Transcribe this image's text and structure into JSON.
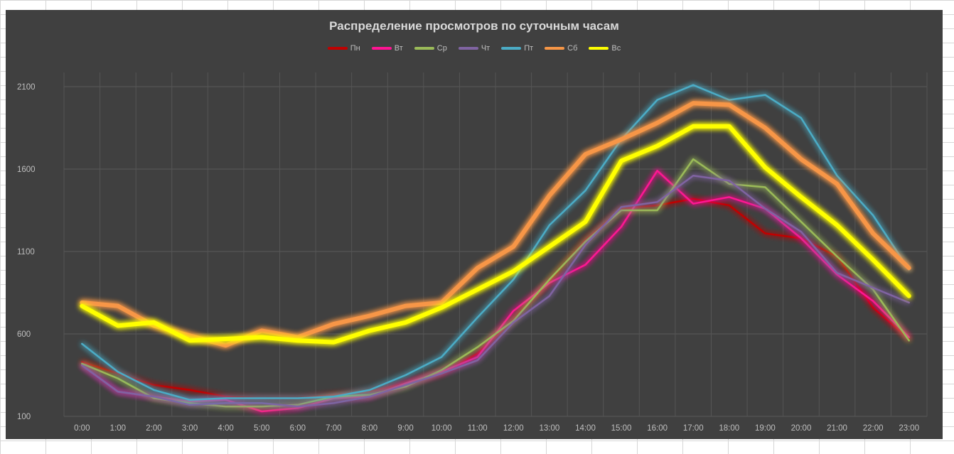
{
  "chart_data": {
    "type": "line",
    "title": "Распределение просмотров по суточным часам",
    "xlabel": "",
    "ylabel": "",
    "ylim": [
      100,
      2100
    ],
    "yticks": [
      100,
      600,
      1100,
      1600,
      2100
    ],
    "grid": true,
    "legend_position": "top",
    "categories": [
      "0:00",
      "1:00",
      "2:00",
      "3:00",
      "4:00",
      "5:00",
      "6:00",
      "7:00",
      "8:00",
      "9:00",
      "10:00",
      "11:00",
      "12:00",
      "13:00",
      "14:00",
      "15:00",
      "16:00",
      "17:00",
      "18:00",
      "19:00",
      "20:00",
      "21:00",
      "22:00",
      "23:00"
    ],
    "series": [
      {
        "name": "Пн",
        "color": "#c00000",
        "width": 2.5,
        "values": [
          430,
          360,
          290,
          260,
          220,
          210,
          210,
          230,
          250,
          300,
          360,
          480,
          690,
          920,
          1170,
          1360,
          1380,
          1420,
          1380,
          1210,
          1180,
          1070,
          760,
          570
        ]
      },
      {
        "name": "Вт",
        "color": "#ff1493",
        "width": 2.5,
        "values": [
          410,
          250,
          220,
          190,
          200,
          130,
          150,
          210,
          220,
          300,
          370,
          460,
          740,
          910,
          1020,
          1250,
          1590,
          1390,
          1430,
          1360,
          1180,
          960,
          800,
          580
        ]
      },
      {
        "name": "Ср",
        "color": "#9bbb59",
        "width": 2.5,
        "values": [
          420,
          330,
          210,
          180,
          160,
          160,
          170,
          220,
          230,
          280,
          380,
          520,
          680,
          930,
          1160,
          1350,
          1350,
          1660,
          1510,
          1490,
          1280,
          1070,
          870,
          560
        ]
      },
      {
        "name": "Чт",
        "color": "#8064a2",
        "width": 2.5,
        "values": [
          410,
          250,
          220,
          170,
          180,
          180,
          160,
          180,
          220,
          290,
          360,
          440,
          670,
          830,
          1140,
          1370,
          1400,
          1560,
          1530,
          1360,
          1220,
          970,
          880,
          790
        ]
      },
      {
        "name": "Пт",
        "color": "#4bacc6",
        "width": 2.5,
        "values": [
          540,
          370,
          260,
          200,
          210,
          210,
          210,
          220,
          260,
          350,
          460,
          700,
          930,
          1260,
          1470,
          1780,
          2020,
          2110,
          2020,
          2050,
          1910,
          1560,
          1320,
          990
        ]
      },
      {
        "name": "Сб",
        "color": "#f79646",
        "width": 6,
        "values": [
          790,
          770,
          650,
          590,
          530,
          620,
          580,
          660,
          710,
          770,
          790,
          1000,
          1130,
          1440,
          1690,
          1780,
          1880,
          2000,
          1990,
          1850,
          1660,
          1510,
          1210,
          1000
        ]
      },
      {
        "name": "Вс",
        "color": "#ffff00",
        "width": 6,
        "values": [
          770,
          650,
          670,
          560,
          570,
          580,
          560,
          550,
          620,
          670,
          760,
          870,
          980,
          1130,
          1280,
          1650,
          1740,
          1860,
          1860,
          1610,
          1430,
          1260,
          1050,
          830
        ]
      }
    ]
  }
}
